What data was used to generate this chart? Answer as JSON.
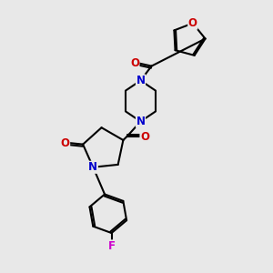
{
  "bg_color": "#e8e8e8",
  "atom_colors": {
    "N": "#0000cc",
    "O": "#cc0000",
    "F": "#cc00cc"
  },
  "bond_color": "#000000",
  "bond_width": 1.5,
  "figsize": [
    3.0,
    3.0
  ],
  "dpi": 100
}
